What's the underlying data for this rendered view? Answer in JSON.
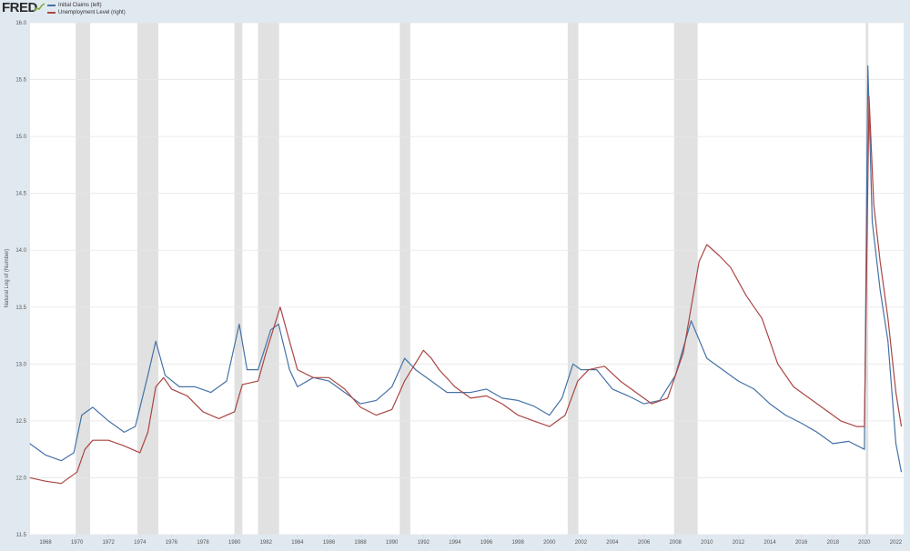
{
  "header": {
    "logo_text": "FRED",
    "logo_icon": "fred-trend-line-icon"
  },
  "colors": {
    "page_background": "#e1e9f0",
    "plot_background": "#ffffff",
    "recession_shading": "#e1e1e1",
    "initial_claims": "#4572a7",
    "unemployment_level": "#aa4643"
  },
  "chart_data": {
    "type": "line",
    "title": "",
    "xlabel": "",
    "ylabel": "Natural Log of (Number)",
    "xlim": [
      "1967-01-07",
      "2022-06-30"
    ],
    "ylim": [
      11.5,
      16.0
    ],
    "y_ticks": [
      11.5,
      12.0,
      12.5,
      13.0,
      13.5,
      14.0,
      14.5,
      15.0,
      15.5,
      16.0
    ],
    "y_tick_labels": [
      "11.5",
      "12.0",
      "12.5",
      "13.0",
      "13.5",
      "14.0",
      "14.5",
      "15.0",
      "15.5",
      "16.0"
    ],
    "x_ticks": [
      "1968",
      "1970",
      "1972",
      "1974",
      "1976",
      "1978",
      "1980",
      "1982",
      "1984",
      "1986",
      "1988",
      "1990",
      "1992",
      "1994",
      "1996",
      "1998",
      "2000",
      "2002",
      "2004",
      "2006",
      "2008",
      "2010",
      "2012",
      "2014",
      "2016",
      "2018",
      "2020",
      "2022"
    ],
    "grid": true,
    "legend_position": "top-left",
    "recessions": [
      [
        "1969-12-01",
        "1970-11-01"
      ],
      [
        "1973-11-01",
        "1975-03-01"
      ],
      [
        "1980-01-01",
        "1980-07-01"
      ],
      [
        "1981-07-01",
        "1982-11-01"
      ],
      [
        "1990-07-01",
        "1991-03-01"
      ],
      [
        "2001-03-01",
        "2001-11-01"
      ],
      [
        "2007-12-01",
        "2009-06-01"
      ],
      [
        "2020-02-01",
        "2020-04-01"
      ]
    ],
    "series": [
      {
        "name": "Initial Claims (left)",
        "color": "#4572a7",
        "points": [
          [
            1967.0,
            12.3
          ],
          [
            1968.0,
            12.2
          ],
          [
            1969.0,
            12.15
          ],
          [
            1969.8,
            12.22
          ],
          [
            1970.3,
            12.55
          ],
          [
            1971.0,
            12.62
          ],
          [
            1972.0,
            12.5
          ],
          [
            1973.0,
            12.4
          ],
          [
            1973.7,
            12.45
          ],
          [
            1974.5,
            12.9
          ],
          [
            1975.0,
            13.2
          ],
          [
            1975.6,
            12.9
          ],
          [
            1976.5,
            12.8
          ],
          [
            1977.5,
            12.8
          ],
          [
            1978.5,
            12.75
          ],
          [
            1979.5,
            12.85
          ],
          [
            1980.3,
            13.35
          ],
          [
            1980.8,
            12.95
          ],
          [
            1981.5,
            12.95
          ],
          [
            1982.3,
            13.3
          ],
          [
            1982.8,
            13.35
          ],
          [
            1983.5,
            12.95
          ],
          [
            1984.0,
            12.8
          ],
          [
            1985.0,
            12.88
          ],
          [
            1986.0,
            12.85
          ],
          [
            1987.0,
            12.75
          ],
          [
            1988.0,
            12.65
          ],
          [
            1989.0,
            12.68
          ],
          [
            1990.0,
            12.8
          ],
          [
            1990.8,
            13.05
          ],
          [
            1991.5,
            12.95
          ],
          [
            1992.5,
            12.85
          ],
          [
            1993.5,
            12.75
          ],
          [
            1995.0,
            12.75
          ],
          [
            1996.0,
            12.78
          ],
          [
            1997.0,
            12.7
          ],
          [
            1998.0,
            12.68
          ],
          [
            1999.0,
            12.63
          ],
          [
            2000.0,
            12.55
          ],
          [
            2000.8,
            12.7
          ],
          [
            2001.5,
            13.0
          ],
          [
            2002.0,
            12.95
          ],
          [
            2003.0,
            12.95
          ],
          [
            2004.0,
            12.78
          ],
          [
            2005.0,
            12.72
          ],
          [
            2006.0,
            12.65
          ],
          [
            2007.0,
            12.68
          ],
          [
            2008.0,
            12.9
          ],
          [
            2009.0,
            13.38
          ],
          [
            2010.0,
            13.05
          ],
          [
            2011.0,
            12.95
          ],
          [
            2012.0,
            12.85
          ],
          [
            2013.0,
            12.78
          ],
          [
            2014.0,
            12.65
          ],
          [
            2015.0,
            12.55
          ],
          [
            2016.0,
            12.48
          ],
          [
            2017.0,
            12.4
          ],
          [
            2018.0,
            12.3
          ],
          [
            2019.0,
            12.32
          ],
          [
            2020.0,
            12.25
          ],
          [
            2020.22,
            15.62
          ],
          [
            2020.5,
            14.25
          ],
          [
            2021.0,
            13.65
          ],
          [
            2021.5,
            13.2
          ],
          [
            2022.0,
            12.3
          ],
          [
            2022.35,
            12.05
          ]
        ]
      },
      {
        "name": "Unemployment Level (right)",
        "color": "#aa4643",
        "points": [
          [
            1967.0,
            12.0
          ],
          [
            1968.0,
            11.97
          ],
          [
            1969.0,
            11.95
          ],
          [
            1970.0,
            12.05
          ],
          [
            1970.5,
            12.25
          ],
          [
            1971.0,
            12.33
          ],
          [
            1972.0,
            12.33
          ],
          [
            1973.0,
            12.28
          ],
          [
            1974.0,
            12.22
          ],
          [
            1974.5,
            12.4
          ],
          [
            1975.0,
            12.8
          ],
          [
            1975.5,
            12.88
          ],
          [
            1976.0,
            12.78
          ],
          [
            1977.0,
            12.72
          ],
          [
            1978.0,
            12.58
          ],
          [
            1979.0,
            12.52
          ],
          [
            1980.0,
            12.58
          ],
          [
            1980.5,
            12.82
          ],
          [
            1981.5,
            12.85
          ],
          [
            1982.0,
            13.1
          ],
          [
            1982.9,
            13.5
          ],
          [
            1983.5,
            13.2
          ],
          [
            1984.0,
            12.95
          ],
          [
            1985.0,
            12.88
          ],
          [
            1986.0,
            12.88
          ],
          [
            1987.0,
            12.78
          ],
          [
            1988.0,
            12.62
          ],
          [
            1989.0,
            12.55
          ],
          [
            1990.0,
            12.6
          ],
          [
            1990.8,
            12.85
          ],
          [
            1992.0,
            13.12
          ],
          [
            1992.5,
            13.05
          ],
          [
            1993.0,
            12.95
          ],
          [
            1994.0,
            12.8
          ],
          [
            1995.0,
            12.7
          ],
          [
            1996.0,
            12.72
          ],
          [
            1997.0,
            12.65
          ],
          [
            1998.0,
            12.55
          ],
          [
            1999.0,
            12.5
          ],
          [
            2000.0,
            12.45
          ],
          [
            2001.0,
            12.55
          ],
          [
            2001.8,
            12.85
          ],
          [
            2002.5,
            12.95
          ],
          [
            2003.5,
            12.98
          ],
          [
            2004.5,
            12.85
          ],
          [
            2005.5,
            12.75
          ],
          [
            2006.5,
            12.65
          ],
          [
            2007.5,
            12.7
          ],
          [
            2008.5,
            13.1
          ],
          [
            2009.5,
            13.9
          ],
          [
            2010.0,
            14.05
          ],
          [
            2010.8,
            13.95
          ],
          [
            2011.5,
            13.85
          ],
          [
            2012.5,
            13.6
          ],
          [
            2013.5,
            13.4
          ],
          [
            2014.5,
            13.0
          ],
          [
            2015.5,
            12.8
          ],
          [
            2016.5,
            12.7
          ],
          [
            2017.5,
            12.6
          ],
          [
            2018.5,
            12.5
          ],
          [
            2019.5,
            12.45
          ],
          [
            2020.0,
            12.45
          ],
          [
            2020.3,
            15.35
          ],
          [
            2020.6,
            14.4
          ],
          [
            2021.0,
            13.9
          ],
          [
            2021.5,
            13.4
          ],
          [
            2022.0,
            12.75
          ],
          [
            2022.35,
            12.45
          ]
        ]
      }
    ]
  }
}
